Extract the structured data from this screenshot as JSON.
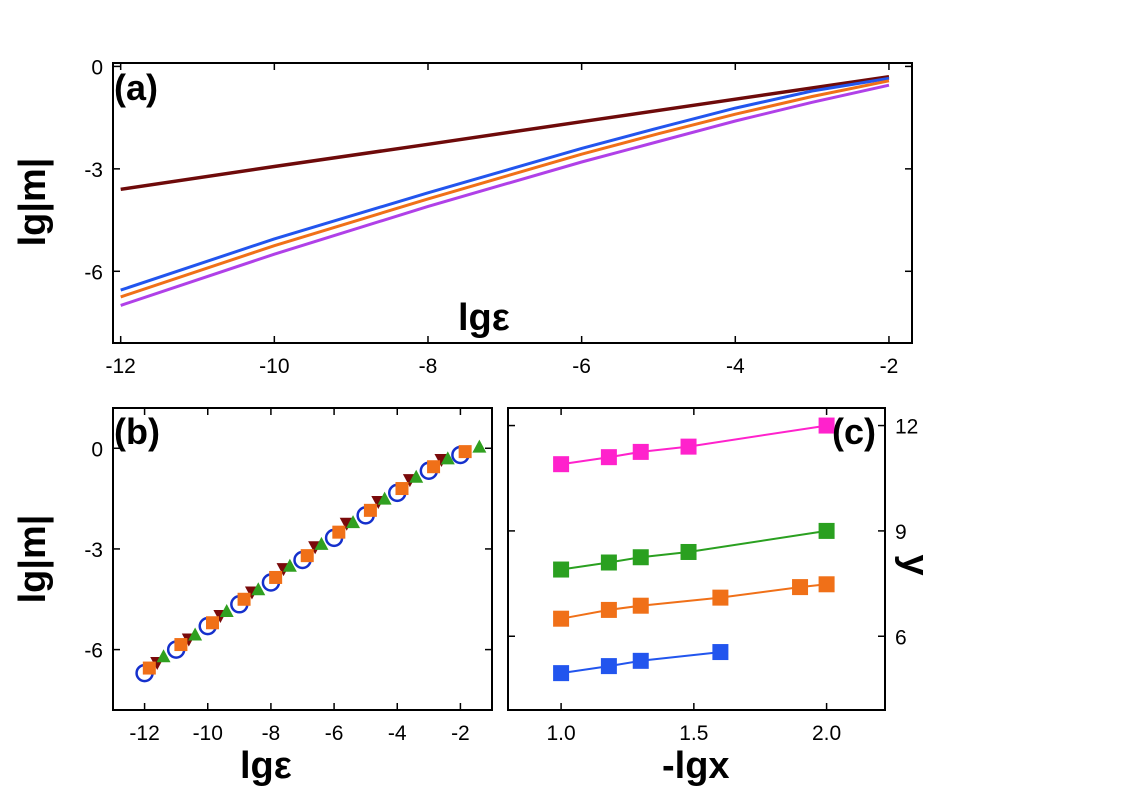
{
  "chart_data": [
    {
      "panel": "(a)",
      "type": "line",
      "xlabel": "lgε",
      "ylabel": "lg|m|",
      "xlim": [
        -12.1,
        -1.7
      ],
      "ylim": [
        -8.1,
        0.1
      ],
      "xticks": [
        -12,
        -10,
        -8,
        -6,
        -4,
        -2
      ],
      "xtick_labels": [
        "-12",
        "-10",
        "-8",
        "-6",
        "-4",
        "-2"
      ],
      "yticks": [
        0,
        -3,
        -6
      ],
      "ytick_labels": [
        "0",
        "-3",
        "-6"
      ],
      "series": [
        {
          "color": "#6e0a0a",
          "x": [
            -12,
            -10,
            -8,
            -6,
            -4,
            -2
          ],
          "y": [
            -3.6,
            -2.93,
            -2.28,
            -1.62,
            -0.96,
            -0.3
          ]
        },
        {
          "color": "#2255ee",
          "x": [
            -12,
            -10,
            -8,
            -6,
            -5,
            -4,
            -3,
            -2
          ],
          "y": [
            -6.55,
            -5.05,
            -3.7,
            -2.4,
            -1.8,
            -1.22,
            -0.72,
            -0.35
          ]
        },
        {
          "color": "#f07018",
          "x": [
            -12,
            -10,
            -8,
            -6,
            -5,
            -4,
            -3,
            -2
          ],
          "y": [
            -6.75,
            -5.25,
            -3.88,
            -2.57,
            -1.97,
            -1.4,
            -0.88,
            -0.42
          ]
        },
        {
          "color": "#b040e8",
          "x": [
            -12,
            -10,
            -8,
            -6,
            -5,
            -4,
            -3,
            -2
          ],
          "y": [
            -7.0,
            -5.5,
            -4.1,
            -2.8,
            -2.2,
            -1.6,
            -1.05,
            -0.55
          ]
        }
      ]
    },
    {
      "panel": "(b)",
      "type": "scatter",
      "xlabel": "lgε",
      "ylabel": "lg|m|",
      "xlim": [
        -13.0,
        -1.0
      ],
      "ylim": [
        -7.8,
        1.2
      ],
      "xticks": [
        -12,
        -10,
        -8,
        -6,
        -4,
        -2
      ],
      "xtick_labels": [
        "-12",
        "-10",
        "-8",
        "-6",
        "-4",
        "-2"
      ],
      "yticks": [
        0,
        -3,
        -6
      ],
      "ytick_labels": [
        "0",
        "-3",
        "-6"
      ],
      "series": [
        {
          "marker": "circle-open",
          "color": "#1530cc",
          "x": [
            -12,
            -11,
            -10,
            -9,
            -8,
            -7,
            -6,
            -5,
            -4,
            -3,
            -2
          ],
          "y": [
            -6.7,
            -6.0,
            -5.3,
            -4.65,
            -4.0,
            -3.33,
            -2.67,
            -2.0,
            -1.33,
            -0.67,
            -0.2
          ]
        },
        {
          "marker": "triangle-down",
          "color": "#7a0a0a",
          "x": [
            -11.6,
            -10.6,
            -9.6,
            -8.6,
            -7.6,
            -6.6,
            -5.6,
            -4.6,
            -3.6,
            -2.6
          ],
          "y": [
            -6.4,
            -5.7,
            -5.0,
            -4.3,
            -3.6,
            -2.95,
            -2.25,
            -1.6,
            -0.95,
            -0.35
          ]
        },
        {
          "marker": "square",
          "color": "#f07018",
          "x": [
            -11.85,
            -10.85,
            -9.85,
            -8.85,
            -7.85,
            -6.85,
            -5.85,
            -4.85,
            -3.85,
            -2.85,
            -1.85
          ],
          "y": [
            -6.55,
            -5.85,
            -5.2,
            -4.5,
            -3.85,
            -3.2,
            -2.5,
            -1.85,
            -1.2,
            -0.55,
            -0.1
          ]
        },
        {
          "marker": "triangle-up",
          "color": "#30a020",
          "x": [
            -11.4,
            -10.4,
            -9.4,
            -8.4,
            -7.4,
            -6.4,
            -5.4,
            -4.4,
            -3.4,
            -2.4,
            -1.4
          ],
          "y": [
            -6.2,
            -5.55,
            -4.85,
            -4.2,
            -3.5,
            -2.85,
            -2.2,
            -1.5,
            -0.85,
            -0.3,
            0.05
          ]
        }
      ]
    },
    {
      "panel": "(c)",
      "type": "scatter",
      "xlabel": "-lgx",
      "ylabel": "y",
      "y_axis_side": "right",
      "xlim": [
        0.8,
        2.22
      ],
      "ylim": [
        3.9,
        12.5
      ],
      "xticks": [
        1.0,
        1.5,
        2.0
      ],
      "xtick_labels": [
        "1.0",
        "1.5",
        "2.0"
      ],
      "yticks": [
        6,
        9,
        12
      ],
      "ytick_labels": [
        "6",
        "9",
        "12"
      ],
      "series": [
        {
          "color": "#ff22cc",
          "x": [
            1.0,
            1.18,
            1.3,
            1.48,
            2.0
          ],
          "y": [
            10.9,
            11.1,
            11.25,
            11.4,
            12.0
          ]
        },
        {
          "color": "#2aa020",
          "x": [
            1.0,
            1.18,
            1.3,
            1.48,
            2.0
          ],
          "y": [
            7.9,
            8.1,
            8.25,
            8.4,
            9.0
          ],
          "fit": [
            7.92,
            8.95
          ]
        },
        {
          "color": "#f07018",
          "x": [
            1.0,
            1.18,
            1.3,
            1.6,
            1.9,
            2.0
          ],
          "y": [
            6.5,
            6.75,
            6.87,
            7.1,
            7.4,
            7.48
          ]
        },
        {
          "color": "#2255ee",
          "x": [
            1.0,
            1.18,
            1.3,
            1.6
          ],
          "y": [
            4.95,
            5.15,
            5.3,
            5.55
          ]
        }
      ]
    }
  ]
}
